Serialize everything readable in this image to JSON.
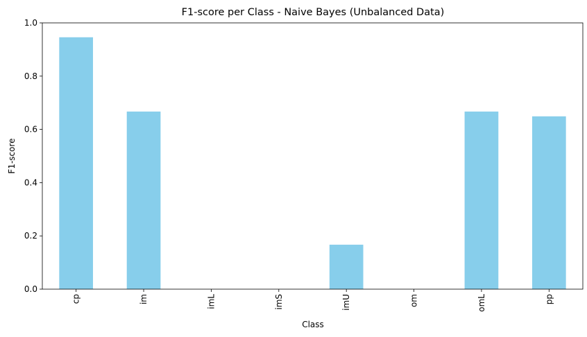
{
  "chart_data": {
    "type": "bar",
    "title": "F1-score per Class - Naive Bayes (Unbalanced Data)",
    "xlabel": "Class",
    "ylabel": "F1-score",
    "categories": [
      "cp",
      "im",
      "imL",
      "imS",
      "imU",
      "om",
      "omL",
      "pp"
    ],
    "values": [
      0.946,
      0.667,
      0.0,
      0.0,
      0.167,
      0.0,
      0.667,
      0.649
    ],
    "ylim": [
      0,
      1.0
    ],
    "yticks": [
      "0.0",
      "0.2",
      "0.4",
      "0.6",
      "0.8",
      "1.0"
    ],
    "ytick_values": [
      0,
      0.2,
      0.4,
      0.6,
      0.8,
      1.0
    ],
    "bar_color": "#87CEEB",
    "grid": false,
    "legend": "none"
  }
}
